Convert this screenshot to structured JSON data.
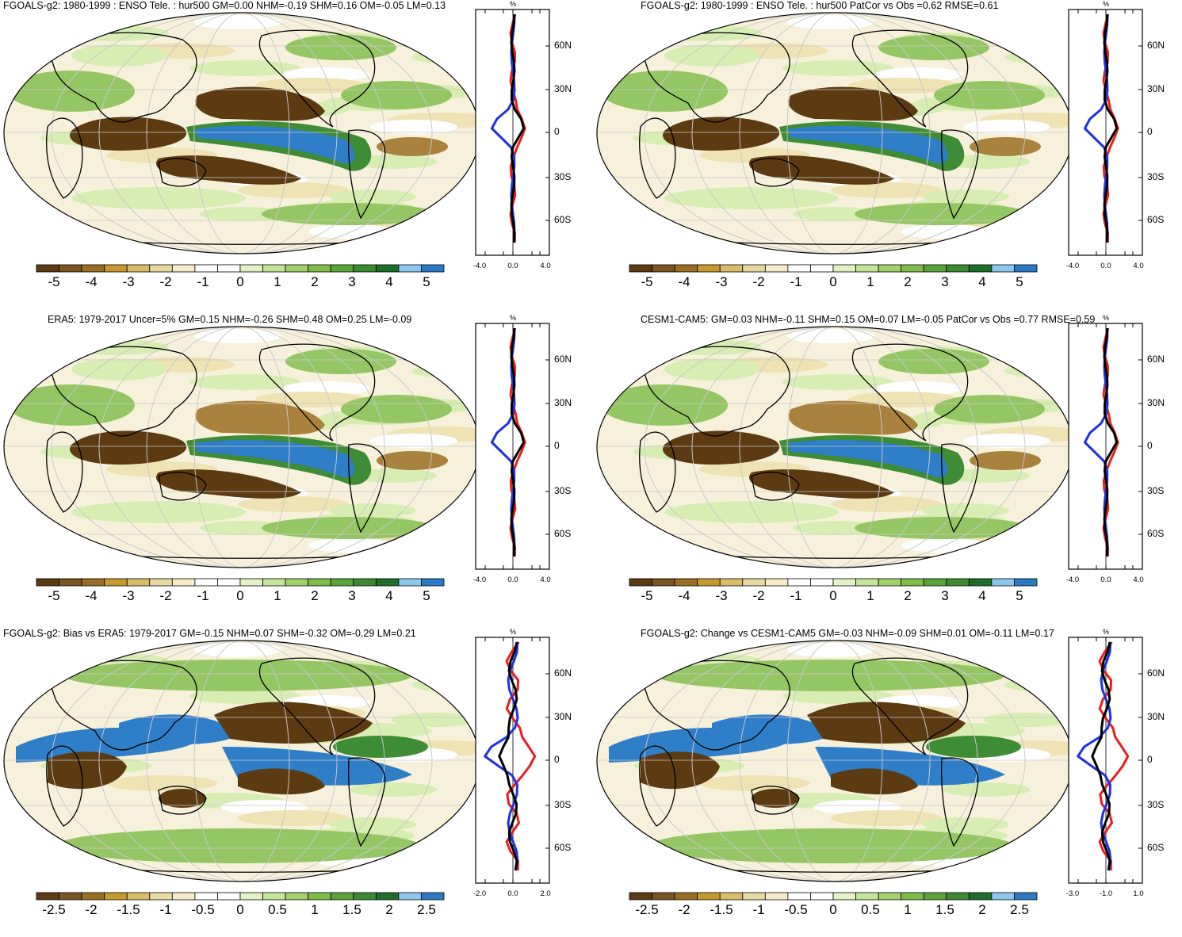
{
  "lat_labels": [
    "60N",
    "30N",
    "0",
    "30S",
    "60S"
  ],
  "colors": {
    "scale": [
      "#5c3a12",
      "#7a5522",
      "#9a6e24",
      "#c69a2e",
      "#d9bd6a",
      "#e8d9a3",
      "#f6eccb",
      "#ffffff",
      "#ffffff",
      "#e3f2c5",
      "#c5e59a",
      "#a2d16c",
      "#7ebc4a",
      "#5aa23a",
      "#3b8a32",
      "#1e6e2a",
      "#8ec6f0",
      "#2a7ac6"
    ],
    "ocean": "#f7f1dc",
    "neg_strong": "#5c3a12",
    "neg_med": "#a9823e",
    "neg_weak": "#efe2b4",
    "pos_weak": "#d8edb4",
    "pos_med": "#94c664",
    "pos_strong": "#3f8c36",
    "blue": "#2f7ec8",
    "line_red": "#ee1c1c",
    "line_blue": "#1f2fe6",
    "line_black": "#000000"
  },
  "panels": [
    {
      "title": "FGOALS-g2: 1980-1999 : ENSO Tele. : hur500 GM=0.00 NHM=-0.19 SHM=0.16 OM=-0.05 LM=0.13",
      "unit": "%",
      "xticks": [
        "-4.0",
        "0.0",
        "4.0"
      ],
      "cbar": [
        "-5",
        "-4",
        "-3",
        "-2",
        "-1",
        "0",
        "1",
        "2",
        "3",
        "4",
        "5"
      ],
      "pattern": "ensoA"
    },
    {
      "title": "FGOALS-g2: 1980-1999 : ENSO Tele. : hur500 PatCor vs Obs =0.62 RMSE=0.61",
      "unit": "%",
      "xticks": [
        "-4.0",
        "0.0",
        "4.0"
      ],
      "cbar": [
        "-5",
        "-4",
        "-3",
        "-2",
        "-1",
        "0",
        "1",
        "2",
        "3",
        "4",
        "5"
      ],
      "pattern": "ensoA"
    },
    {
      "title": "ERA5: 1979-2017 Uncer=5% GM=0.15 NHM=-0.26 SHM=0.48 OM=0.25 LM=-0.09",
      "unit": "%",
      "xticks": [
        "-4.0",
        "0.0",
        "4.0"
      ],
      "cbar": [
        "-5",
        "-4",
        "-3",
        "-2",
        "-1",
        "0",
        "1",
        "2",
        "3",
        "4",
        "5"
      ],
      "pattern": "ensoB"
    },
    {
      "title": "CESM1-CAM5: GM=0.03 NHM=-0.11 SHM=0.15 OM=0.07 LM=-0.05 PatCor vs Obs =0.77 RMSE=0.59",
      "unit": "%",
      "xticks": [
        "-4.0",
        "0.0",
        "4.0"
      ],
      "cbar": [
        "-5",
        "-4",
        "-3",
        "-2",
        "-1",
        "0",
        "1",
        "2",
        "3",
        "4",
        "5"
      ],
      "pattern": "ensoB"
    },
    {
      "title": "FGOALS-g2: Bias vs ERA5: 1979-2017 GM=-0.15 NHM=0.07 SHM=-0.32 OM=-0.29 LM=0.21",
      "unit": "%",
      "xticks": [
        "-2.0",
        "0.0",
        "2.0"
      ],
      "cbar": [
        "-2.5",
        "-2",
        "-1.5",
        "-1",
        "-0.5",
        "0",
        "0.5",
        "1",
        "1.5",
        "2",
        "2.5"
      ],
      "pattern": "bias"
    },
    {
      "title": "FGOALS-g2: Change vs CESM1-CAM5 GM=-0.03 NHM=-0.09 SHM=0.01 OM=-0.11 LM=0.17",
      "unit": "%",
      "xticks": [
        "-3.0",
        "-1.0",
        "1.0"
      ],
      "cbar": [
        "-2.5",
        "-2",
        "-1.5",
        "-1",
        "-0.5",
        "0",
        "0.5",
        "1",
        "1.5",
        "2",
        "2.5"
      ],
      "pattern": "bias"
    }
  ]
}
